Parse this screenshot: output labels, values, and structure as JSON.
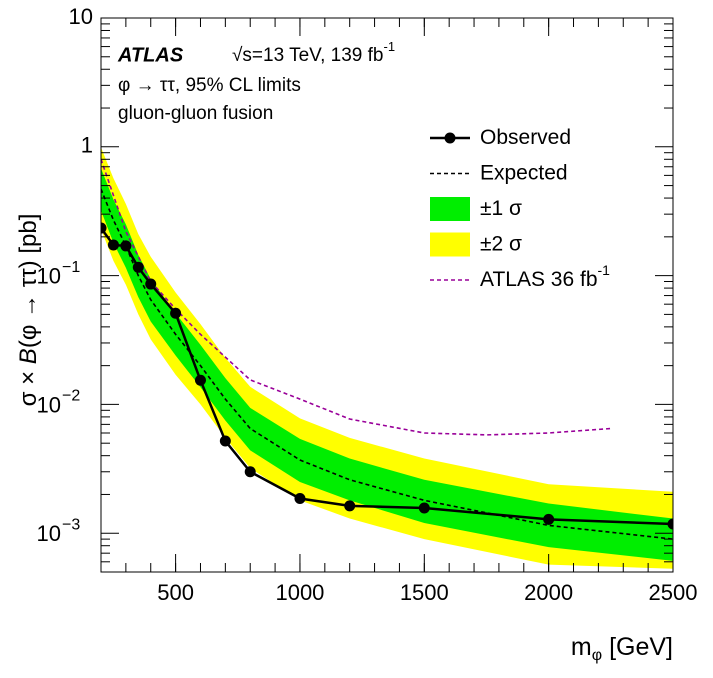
{
  "chart_data": {
    "type": "line",
    "log_y": true,
    "xlim": [
      200,
      2500
    ],
    "ylim": [
      0.0005,
      10
    ],
    "xticks": [
      500,
      1000,
      1500,
      2000,
      2500
    ],
    "yticks": [
      {
        "value": 0.001,
        "label": "10",
        "exponent": "−3"
      },
      {
        "value": 0.01,
        "label": "10",
        "exponent": "−2"
      },
      {
        "value": 0.1,
        "label": "10",
        "exponent": "−1"
      },
      1,
      10
    ],
    "x_label": [
      "m",
      "φ",
      " [GeV]"
    ],
    "y_label": [
      "σ × ",
      "B",
      "(φ → ττ) [pb]"
    ],
    "annotations": {
      "experiment": "ATLAS",
      "energy": "√s=13 TeV, 139 fb",
      "energy_superscript": "-1",
      "process": "φ → ττ, 95% CL limits",
      "production": "gluon-gluon fusion"
    },
    "series": [
      {
        "name": "Observed",
        "kind": "line_markers",
        "color": "#000000",
        "x": [
          200,
          250,
          300,
          350,
          400,
          500,
          600,
          700,
          800,
          1000,
          1200,
          1500,
          2000,
          2500
        ],
        "values": [
          0.234,
          0.173,
          0.17,
          0.116,
          0.086,
          0.051,
          0.0154,
          0.0052,
          0.003,
          0.00186,
          0.00163,
          0.00157,
          0.00128,
          0.00118
        ]
      },
      {
        "name": "Expected",
        "kind": "dashed",
        "color": "#000000",
        "x": [
          200,
          250,
          300,
          350,
          400,
          500,
          600,
          700,
          800,
          1000,
          1200,
          1500,
          2000,
          2500
        ],
        "values": [
          0.47,
          0.27,
          0.17,
          0.1,
          0.065,
          0.035,
          0.02,
          0.011,
          0.0065,
          0.0037,
          0.0026,
          0.0018,
          0.00115,
          0.0009
        ]
      },
      {
        "name": "±1 σ",
        "kind": "band",
        "color": "#00ee00",
        "x": [
          200,
          250,
          300,
          350,
          400,
          500,
          600,
          700,
          800,
          1000,
          1200,
          1500,
          2000,
          2500
        ],
        "lower": [
          0.32,
          0.18,
          0.115,
          0.068,
          0.044,
          0.024,
          0.0136,
          0.0075,
          0.0044,
          0.0025,
          0.0018,
          0.0012,
          0.00078,
          0.00061
        ],
        "upper": [
          0.68,
          0.39,
          0.25,
          0.145,
          0.094,
          0.051,
          0.029,
          0.016,
          0.0094,
          0.0054,
          0.0038,
          0.0026,
          0.0017,
          0.0013
        ]
      },
      {
        "name": "±2 σ",
        "kind": "band",
        "color": "#ffff00",
        "x": [
          200,
          250,
          300,
          350,
          400,
          500,
          600,
          700,
          800,
          1000,
          1200,
          1500,
          2000,
          2500
        ],
        "lower": [
          0.23,
          0.13,
          0.085,
          0.05,
          0.032,
          0.017,
          0.01,
          0.0055,
          0.0032,
          0.0018,
          0.0013,
          0.0009,
          0.00057,
          0.00053
        ],
        "upper": [
          0.99,
          0.57,
          0.36,
          0.21,
          0.14,
          0.074,
          0.042,
          0.023,
          0.0137,
          0.0078,
          0.0055,
          0.0038,
          0.0024,
          0.0021
        ]
      },
      {
        "name": "ATLAS 36 fb",
        "name_superscript": "-1",
        "kind": "dashed",
        "color": "#990099",
        "x": [
          200,
          300,
          400,
          500,
          600,
          800,
          1000,
          1200,
          1500,
          1750,
          2000,
          2250
        ],
        "values": [
          0.8,
          0.22,
          0.09,
          0.055,
          0.035,
          0.0155,
          0.011,
          0.0077,
          0.006,
          0.0058,
          0.006,
          0.0065
        ]
      }
    ]
  }
}
